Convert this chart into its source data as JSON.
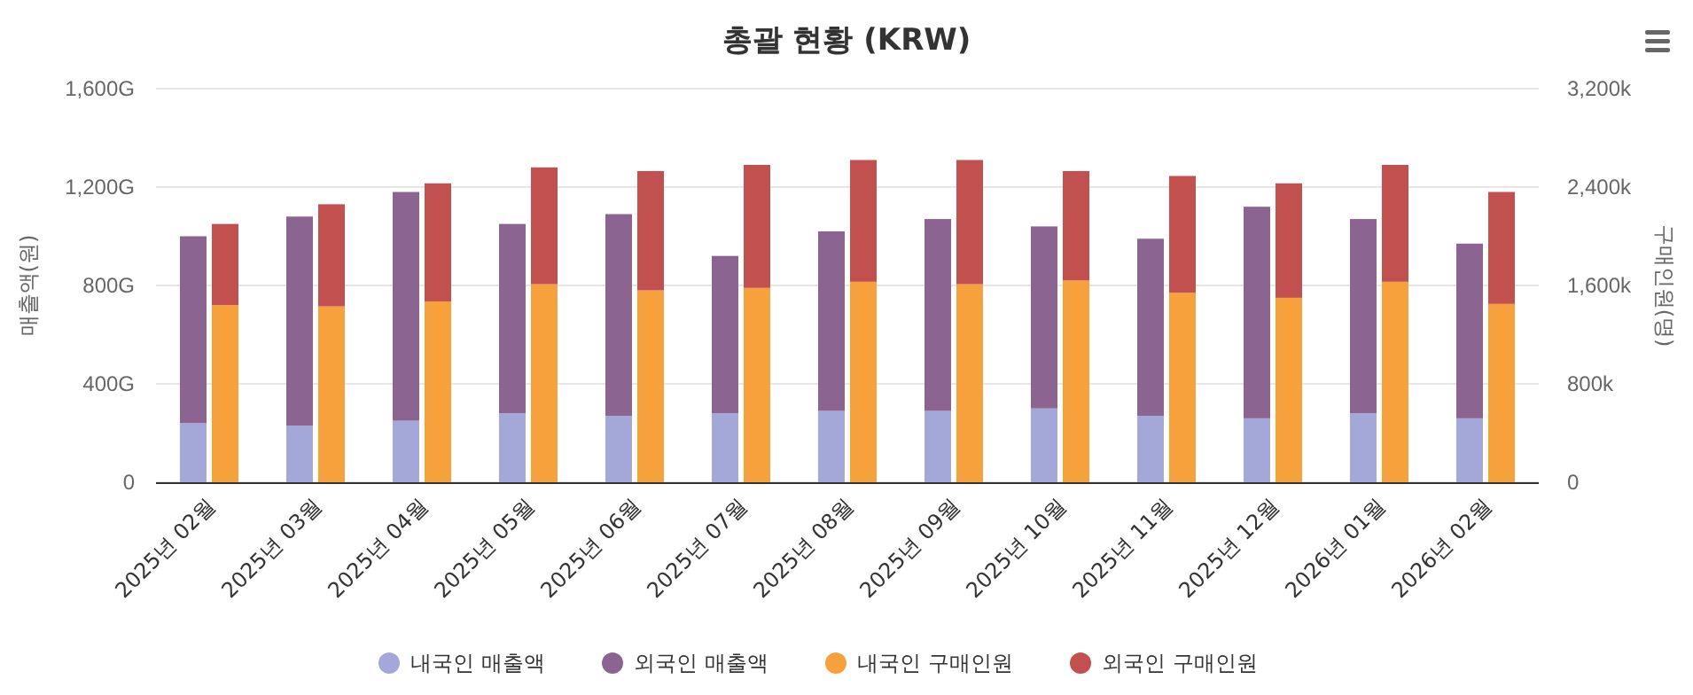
{
  "chart_data": {
    "type": "bar",
    "title": "총괄 현황 (KRW)",
    "ylabel": "매출액(원)",
    "y2label": "구매인원(명)",
    "categories": [
      "2025년 02월",
      "2025년 03월",
      "2025년 04월",
      "2025년 05월",
      "2025년 06월",
      "2025년 07월",
      "2025년 08월",
      "2025년 09월",
      "2025년 10월",
      "2025년 11월",
      "2025년 12월",
      "2026년 01월",
      "2026년 02월"
    ],
    "stacked": true,
    "series": [
      {
        "name": "내국인 매출액",
        "color": "#a3a8d8",
        "values": [
          240,
          230,
          250,
          280,
          270,
          280,
          290,
          290,
          300,
          270,
          260,
          280,
          260
        ]
      },
      {
        "name": "외국인 매출액",
        "color": "#8c6492",
        "values": [
          760,
          850,
          930,
          770,
          820,
          640,
          730,
          780,
          740,
          720,
          860,
          790,
          710
        ]
      },
      {
        "name": "내국인 구매인원",
        "color": "#f6a13c",
        "axis": "y2",
        "values": [
          1440,
          1430,
          1470,
          1610,
          1560,
          1580,
          1630,
          1610,
          1640,
          1540,
          1500,
          1630,
          1450
        ]
      },
      {
        "name": "외국인 구매인원",
        "color": "#c1504f",
        "axis": "y2",
        "values": [
          660,
          830,
          960,
          950,
          970,
          1000,
          990,
          1010,
          890,
          950,
          930,
          950,
          910
        ]
      }
    ],
    "ylim": [
      0,
      1600
    ],
    "yticks": [
      0,
      {
        "value": 400,
        "label": "400G"
      },
      {
        "value": 800,
        "label": "800G"
      },
      {
        "value": 1200,
        "label": "1,200G"
      },
      {
        "value": 1600,
        "label": "1,600G"
      }
    ],
    "y2lim": [
      0,
      3200
    ],
    "y2ticks": [
      0,
      {
        "value": 800,
        "label": "800k"
      },
      {
        "value": 1600,
        "label": "1,600k"
      },
      {
        "value": 2400,
        "label": "2,400k"
      },
      {
        "value": 3200,
        "label": "3,200k"
      }
    ],
    "grid": "y",
    "legend": "bottom"
  }
}
